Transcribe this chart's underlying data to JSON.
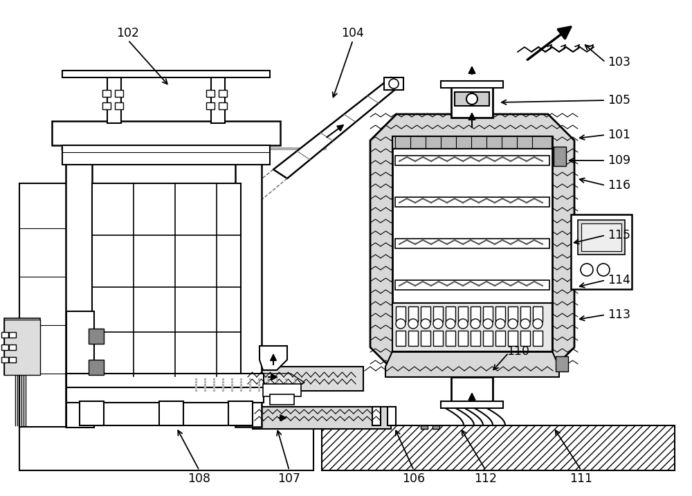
{
  "bg_color": "#ffffff",
  "figsize": [
    10.0,
    7.17
  ],
  "dpi": 100
}
